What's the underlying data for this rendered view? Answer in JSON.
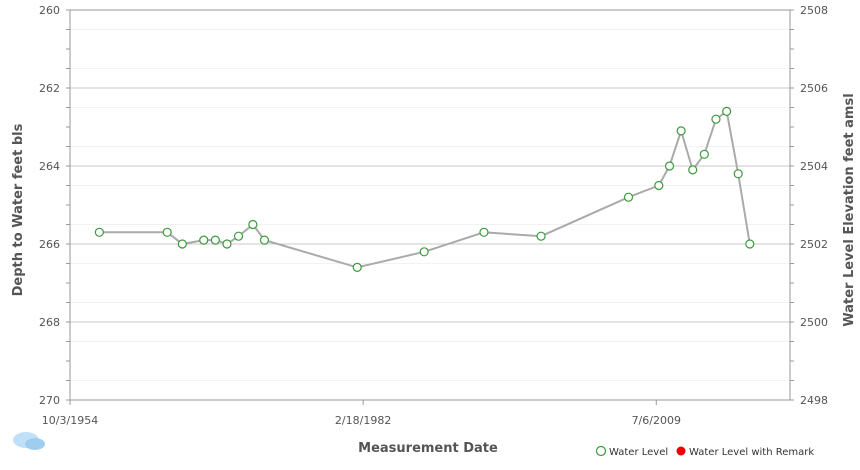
{
  "chart_data": {
    "type": "line",
    "xlabel": "Measurement Date",
    "ylabel_left": "Depth to Water feet bls",
    "ylabel_right": "Water Level Elevation feet amsl",
    "x_axis": {
      "type": "date",
      "min": "1954-10-03",
      "max": "2022-01-01",
      "ticks": [
        "1954-10-03",
        "1982-02-18",
        "2009-07-06"
      ],
      "tick_labels": [
        "10/3/1954",
        "2/18/1982",
        "7/6/2009"
      ]
    },
    "y_axis_left": {
      "min": 260,
      "max": 270,
      "inverted": true,
      "ticks": [
        "260",
        "262",
        "264",
        "266",
        "268",
        "270"
      ]
    },
    "y_axis_right": {
      "min": 2498,
      "max": 2508,
      "ticks": [
        "2508",
        "2506",
        "2504",
        "2502",
        "2500",
        "2498"
      ]
    },
    "grid": true,
    "legend_position": "bottom-right",
    "series": [
      {
        "name": "Water Level",
        "color": "#3a9a3a",
        "line_color": "#aaaaaa",
        "points": [
          {
            "x": "1957-07-01",
            "y": 265.7
          },
          {
            "x": "1963-11-01",
            "y": 265.7
          },
          {
            "x": "1965-04-01",
            "y": 266.0
          },
          {
            "x": "1967-04-01",
            "y": 265.9
          },
          {
            "x": "1968-05-01",
            "y": 265.9
          },
          {
            "x": "1969-06-01",
            "y": 266.0
          },
          {
            "x": "1970-07-01",
            "y": 265.8
          },
          {
            "x": "1971-11-01",
            "y": 265.5
          },
          {
            "x": "1972-12-01",
            "y": 265.9
          },
          {
            "x": "1981-08-01",
            "y": 266.6
          },
          {
            "x": "1987-11-01",
            "y": 266.2
          },
          {
            "x": "1993-06-01",
            "y": 265.7
          },
          {
            "x": "1998-10-01",
            "y": 265.8
          },
          {
            "x": "2006-12-01",
            "y": 264.8
          },
          {
            "x": "2009-10-01",
            "y": 264.5
          },
          {
            "x": "2010-10-01",
            "y": 264.0
          },
          {
            "x": "2011-11-01",
            "y": 263.1
          },
          {
            "x": "2012-12-01",
            "y": 264.1
          },
          {
            "x": "2014-01-01",
            "y": 263.7
          },
          {
            "x": "2015-02-01",
            "y": 262.8
          },
          {
            "x": "2016-02-01",
            "y": 262.6
          },
          {
            "x": "2017-03-01",
            "y": 264.2
          },
          {
            "x": "2018-04-01",
            "y": 266.0
          }
        ]
      },
      {
        "name": "Water Level with Remark",
        "color": "#ee0000",
        "points": []
      }
    ]
  }
}
